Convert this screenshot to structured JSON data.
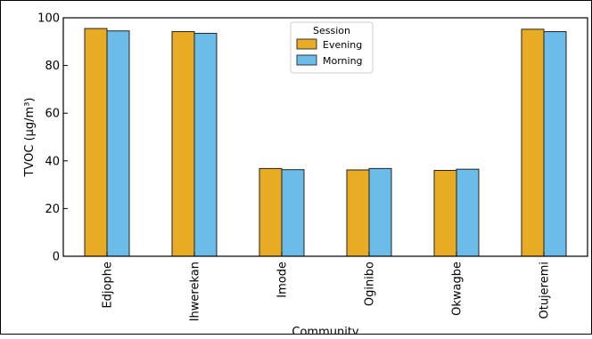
{
  "chart_data": {
    "type": "bar",
    "xlabel": "Community",
    "ylabel": "TVOC (µg/m³)",
    "ylim": [
      0,
      100
    ],
    "yticks": [
      0,
      20,
      40,
      60,
      80,
      100
    ],
    "categories": [
      "Edjophe",
      "Ihwerekan",
      "Imode",
      "Oginibo",
      "Okwagbe",
      "Otujeremi"
    ],
    "series": [
      {
        "name": "Evening",
        "color": "#E8AC24",
        "values": [
          95.5,
          94.2,
          36.8,
          36.2,
          36.0,
          95.2
        ]
      },
      {
        "name": "Morning",
        "color": "#6BBCE8",
        "values": [
          94.5,
          93.5,
          36.3,
          36.8,
          36.5,
          94.2
        ]
      }
    ],
    "legend": {
      "title": "Session",
      "placement": "top-center"
    },
    "grid": false
  }
}
